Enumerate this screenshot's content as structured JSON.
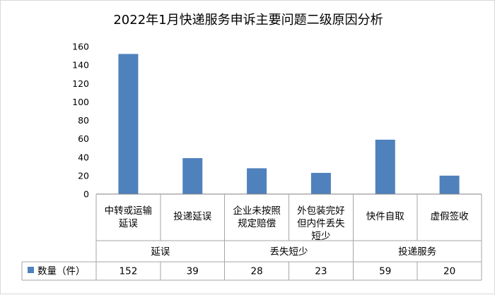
{
  "chart_data": {
    "type": "bar",
    "title": "2022年1月快递服务申诉主要问题二级原因分析",
    "categories": [
      [
        "中转或运输",
        "延误"
      ],
      [
        "投递延误"
      ],
      [
        "企业未按照",
        "规定赔偿"
      ],
      [
        "外包装完好",
        "但内件丢失",
        "短少"
      ],
      [
        "快件自取"
      ],
      [
        "虚假签收"
      ]
    ],
    "groups": [
      {
        "label": "延误",
        "span": 2
      },
      {
        "label": "丢失短少",
        "span": 2
      },
      {
        "label": "投递服务",
        "span": 2
      }
    ],
    "series": [
      {
        "name": "数量（件）",
        "values": [
          152,
          39,
          28,
          23,
          59,
          20
        ],
        "color": "#4f81bd"
      }
    ],
    "ylim": [
      0,
      160
    ],
    "yticks": [
      0,
      20,
      40,
      60,
      80,
      100,
      120,
      140,
      160
    ],
    "grid": false,
    "legend": "data-table"
  }
}
